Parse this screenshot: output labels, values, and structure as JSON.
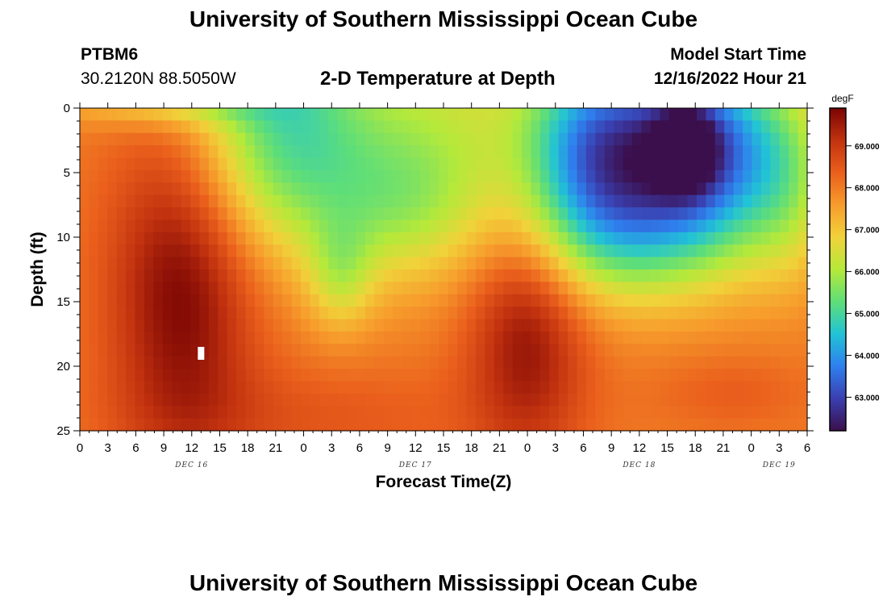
{
  "header": {
    "title": "University of Southern Mississippi Ocean Cube",
    "station": "PTBM6",
    "coords": "30.2120N  88.5050W",
    "subtitle": "2-D Temperature at Depth",
    "model_start_label": "Model Start Time",
    "model_start_value": "12/16/2022 Hour 21"
  },
  "footer": {
    "title": "University of Southern Mississippi Ocean Cube"
  },
  "colors": {
    "colormap": [
      "#3b0f4c",
      "#3a3fb0",
      "#2f7fee",
      "#21c3d6",
      "#5fde78",
      "#b5e93a",
      "#f1d23a",
      "#f79c2c",
      "#ea5f1c",
      "#c2320f",
      "#7a0403"
    ]
  },
  "chart_data": {
    "type": "heatmap",
    "title": "2-D Temperature at Depth",
    "xlabel": "Forecast Time(Z)",
    "ylabel": "Depth (ft)",
    "x_hours_range": [
      0,
      78
    ],
    "x_tick_step_hours": 3,
    "x_tick_labels": [
      "0",
      "3",
      "6",
      "9",
      "12",
      "15",
      "18",
      "21",
      "0",
      "3",
      "6",
      "9",
      "12",
      "15",
      "18",
      "21",
      "0",
      "3",
      "6",
      "9",
      "12",
      "15",
      "18",
      "21",
      "0",
      "3",
      "6"
    ],
    "day_labels": [
      {
        "label": "DEC 16",
        "hour": 12
      },
      {
        "label": "DEC 17",
        "hour": 36
      },
      {
        "label": "DEC 18",
        "hour": 60
      },
      {
        "label": "DEC 19",
        "hour": 75
      }
    ],
    "y_range": [
      0,
      25
    ],
    "y_tick_labels": [
      "0",
      "5",
      "10",
      "15",
      "20",
      "25"
    ],
    "grid_cols": 79,
    "grid_rows": 26,
    "colorbar": {
      "unit": "degF",
      "min": 62.2,
      "max": 69.9,
      "tick_labels": [
        "69.000",
        "68.000",
        "67.000",
        "66.000",
        "65.000",
        "64.000",
        "63.000"
      ]
    },
    "missing_cell": {
      "hour": 13,
      "depth": 19
    }
  }
}
